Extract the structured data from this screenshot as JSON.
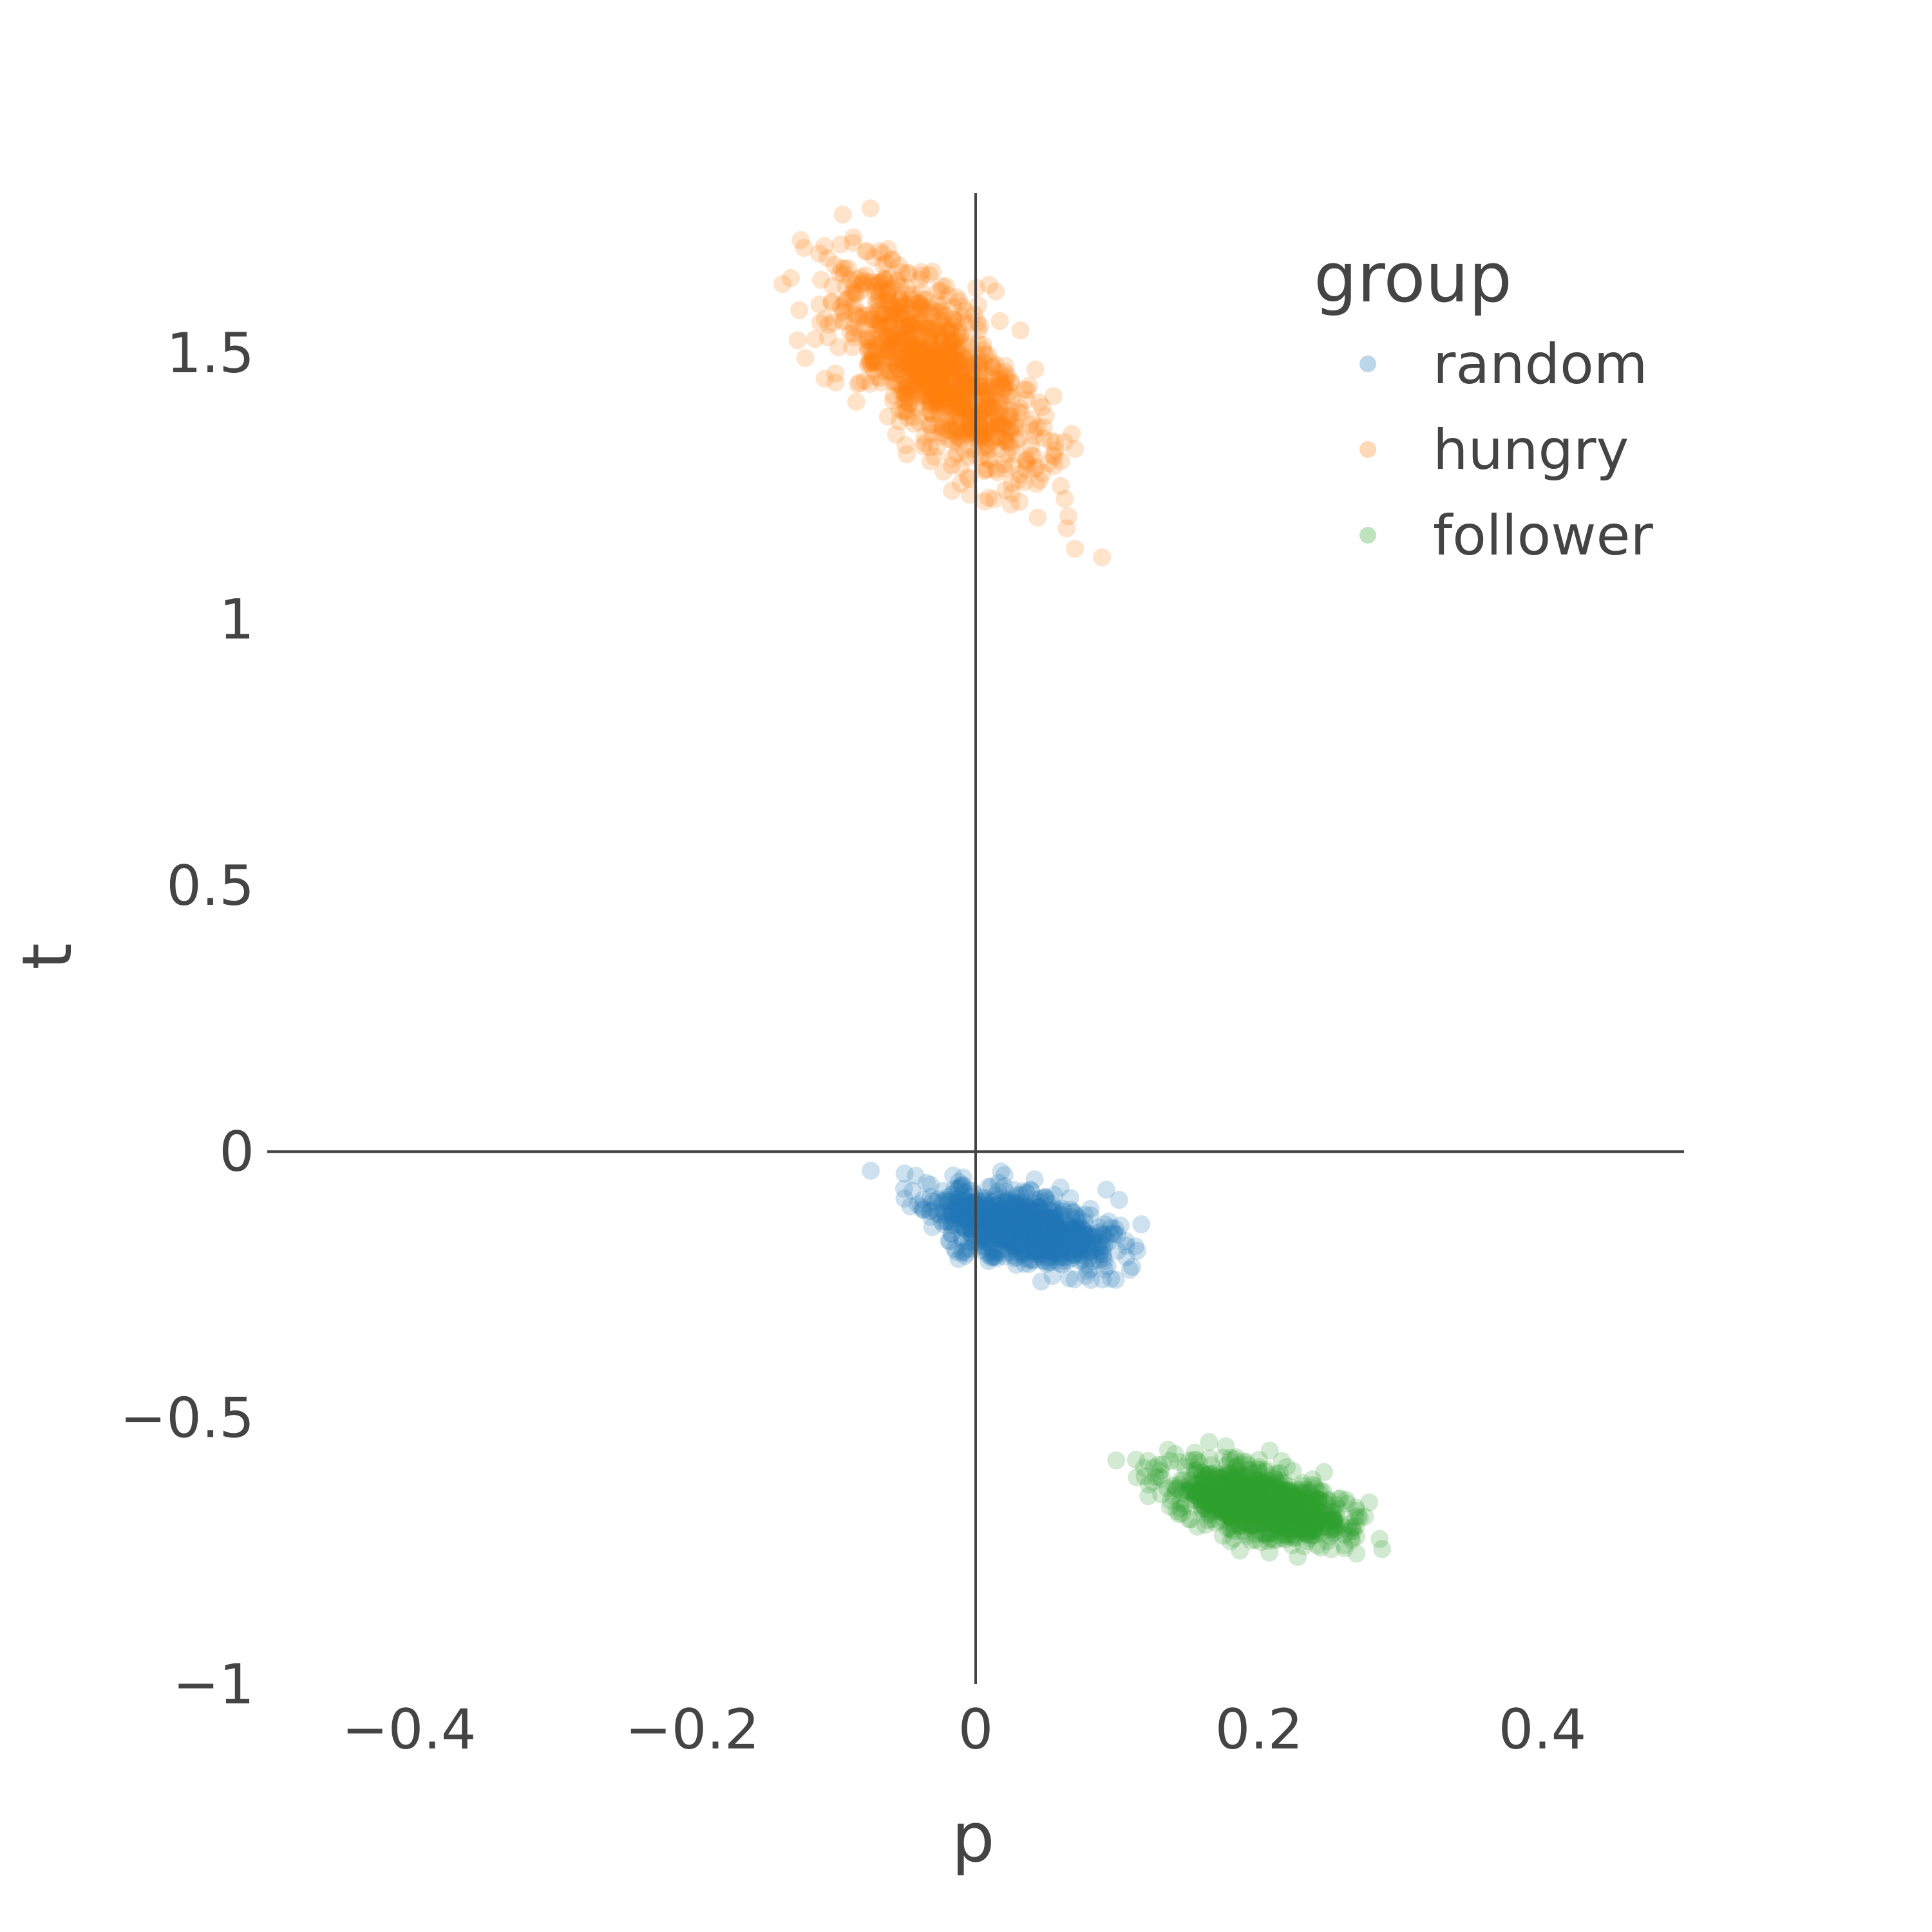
{
  "chart_data": {
    "type": "scatter",
    "title": "",
    "xlabel": "p",
    "ylabel": "t",
    "xlim": [
      -0.5,
      0.5
    ],
    "ylim": [
      -1.0,
      1.8
    ],
    "x_ticks": [
      -0.4,
      -0.2,
      0,
      0.2,
      0.4
    ],
    "x_tick_labels": [
      "−0.4",
      "−0.2",
      "0",
      "0.2",
      "0.4"
    ],
    "y_ticks": [
      -1,
      -0.5,
      0,
      0.5,
      1,
      1.5
    ],
    "y_tick_labels": [
      "−1",
      "−0.5",
      "0",
      "0.5",
      "1",
      "1.5"
    ],
    "zero_lines": true,
    "grid": false,
    "legend": {
      "title": "group",
      "placement": "top-right"
    },
    "marker_opacity": 0.22,
    "series": [
      {
        "name": "random",
        "color": "#1f77b4",
        "n_points": 1000,
        "mean": [
          0.03,
          -0.14
        ],
        "std": [
          0.03,
          0.035
        ],
        "correlation": -0.5,
        "seed": 11
      },
      {
        "name": "hungry",
        "color": "#ff7f0e",
        "n_points": 1000,
        "mean": [
          -0.03,
          1.47
        ],
        "std": [
          0.035,
          0.1
        ],
        "correlation": -0.7,
        "seed": 23
      },
      {
        "name": "follower",
        "color": "#2ca02c",
        "n_points": 1000,
        "mean": [
          0.2,
          -0.66
        ],
        "std": [
          0.03,
          0.035
        ],
        "correlation": -0.5,
        "seed": 37
      }
    ]
  }
}
